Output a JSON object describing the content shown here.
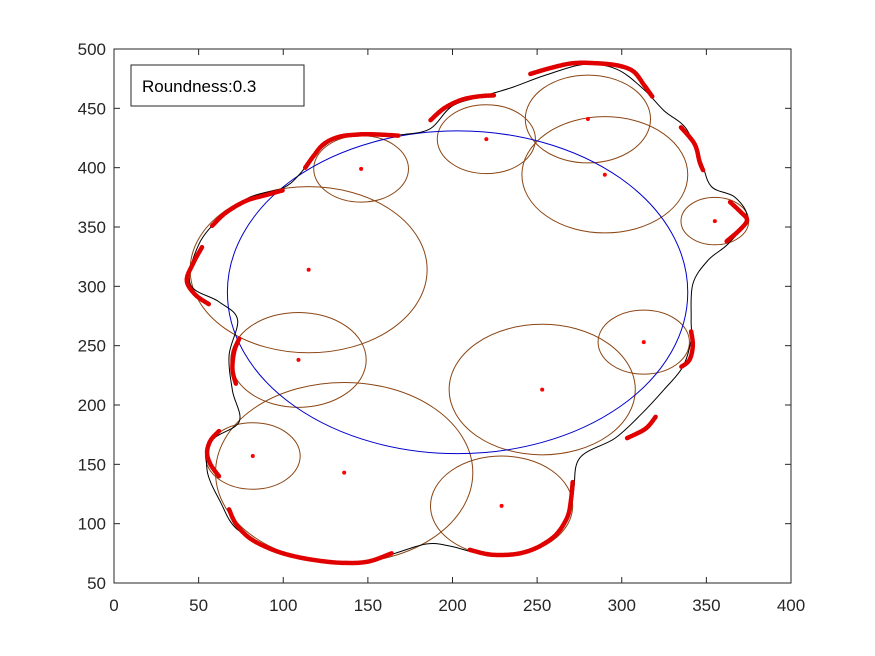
{
  "chart_data": {
    "type": "scatter",
    "title": "",
    "xlabel": "",
    "ylabel": "",
    "xlim": [
      0,
      400
    ],
    "ylim": [
      50,
      500
    ],
    "x_ticks": [
      "0",
      "50",
      "100",
      "150",
      "200",
      "250",
      "300",
      "350",
      "400"
    ],
    "y_ticks": [
      "50",
      "100",
      "150",
      "200",
      "250",
      "300",
      "350",
      "400",
      "450",
      "500"
    ],
    "grid": false,
    "legend": {
      "text": "Roundness:0.3",
      "placement": "top-left"
    },
    "colors": {
      "circles": "#8B4513",
      "centers": "#FF0000",
      "blob": "#000000",
      "highlight": "#E00000",
      "ellipse": "#0000CC",
      "axes": "#262626"
    },
    "circles": [
      {
        "cx": 146,
        "cy": 399,
        "r": 28
      },
      {
        "cx": 220,
        "cy": 424,
        "r": 29
      },
      {
        "cx": 280,
        "cy": 441,
        "r": 37
      },
      {
        "cx": 290,
        "cy": 394,
        "r": 49
      },
      {
        "cx": 355,
        "cy": 355,
        "r": 20
      },
      {
        "cx": 115,
        "cy": 314,
        "r": 70
      },
      {
        "cx": 313,
        "cy": 253,
        "r": 27
      },
      {
        "cx": 109,
        "cy": 238,
        "r": 40
      },
      {
        "cx": 253,
        "cy": 213,
        "r": 55
      },
      {
        "cx": 82,
        "cy": 157,
        "r": 28
      },
      {
        "cx": 136,
        "cy": 143,
        "r": 76
      },
      {
        "cx": 229,
        "cy": 115,
        "r": 42
      }
    ],
    "ellipse": {
      "cx": 203,
      "cy": 295,
      "rx": 136,
      "ry": 136
    },
    "blob_outline": [
      [
        120,
        413
      ],
      [
        133,
        425
      ],
      [
        154,
        427
      ],
      [
        171,
        428
      ],
      [
        187,
        433
      ],
      [
        200,
        452
      ],
      [
        220,
        461
      ],
      [
        236,
        468
      ],
      [
        255,
        478
      ],
      [
        278,
        487
      ],
      [
        297,
        483
      ],
      [
        313,
        466
      ],
      [
        325,
        448
      ],
      [
        338,
        433
      ],
      [
        347,
        405
      ],
      [
        353,
        384
      ],
      [
        367,
        375
      ],
      [
        374,
        357
      ],
      [
        363,
        336
      ],
      [
        351,
        322
      ],
      [
        342,
        302
      ],
      [
        341,
        272
      ],
      [
        341,
        255
      ],
      [
        336,
        232
      ],
      [
        325,
        213
      ],
      [
        312,
        193
      ],
      [
        296,
        172
      ],
      [
        275,
        155
      ],
      [
        271,
        124
      ],
      [
        262,
        91
      ],
      [
        245,
        77
      ],
      [
        220,
        74
      ],
      [
        199,
        81
      ],
      [
        185,
        83
      ],
      [
        166,
        75
      ],
      [
        148,
        67
      ],
      [
        120,
        68
      ],
      [
        96,
        78
      ],
      [
        73,
        95
      ],
      [
        63,
        118
      ],
      [
        55,
        145
      ],
      [
        58,
        170
      ],
      [
        74,
        186
      ],
      [
        70,
        212
      ],
      [
        68,
        242
      ],
      [
        73,
        272
      ],
      [
        62,
        287
      ],
      [
        45,
        302
      ],
      [
        50,
        335
      ],
      [
        63,
        358
      ],
      [
        80,
        375
      ],
      [
        100,
        383
      ],
      [
        110,
        395
      ]
    ],
    "highlight_segments": [
      [
        [
          113,
          400
        ],
        [
          118,
          410
        ],
        [
          124,
          420
        ],
        [
          133,
          426
        ],
        [
          145,
          428
        ],
        [
          155,
          428
        ],
        [
          168,
          427
        ]
      ],
      [
        [
          187,
          440
        ],
        [
          195,
          450
        ],
        [
          205,
          457
        ],
        [
          215,
          460
        ],
        [
          225,
          461
        ]
      ],
      [
        [
          246,
          479
        ],
        [
          258,
          484
        ],
        [
          271,
          488
        ],
        [
          285,
          488
        ],
        [
          298,
          486
        ],
        [
          307,
          481
        ],
        [
          313,
          470
        ],
        [
          318,
          460
        ]
      ],
      [
        [
          335,
          434
        ],
        [
          343,
          420
        ],
        [
          346,
          405
        ],
        [
          348,
          398
        ]
      ],
      [
        [
          364,
          371
        ],
        [
          370,
          363
        ],
        [
          374,
          356
        ],
        [
          370,
          348
        ],
        [
          362,
          338
        ]
      ],
      [
        [
          341,
          262
        ],
        [
          342,
          250
        ],
        [
          340,
          238
        ],
        [
          335,
          232
        ]
      ],
      [
        [
          320,
          190
        ],
        [
          314,
          180
        ],
        [
          303,
          172
        ]
      ],
      [
        [
          271,
          135
        ],
        [
          270,
          120
        ],
        [
          268,
          106
        ],
        [
          262,
          92
        ],
        [
          254,
          83
        ],
        [
          245,
          77
        ],
        [
          235,
          74
        ],
        [
          222,
          74
        ],
        [
          210,
          78
        ]
      ],
      [
        [
          164,
          75
        ],
        [
          150,
          68
        ],
        [
          135,
          67
        ],
        [
          120,
          69
        ],
        [
          105,
          73
        ],
        [
          92,
          79
        ],
        [
          80,
          88
        ],
        [
          72,
          100
        ],
        [
          68,
          112
        ]
      ],
      [
        [
          62,
          178
        ],
        [
          57,
          170
        ],
        [
          55,
          160
        ],
        [
          57,
          150
        ],
        [
          62,
          140
        ]
      ],
      [
        [
          72,
          218
        ],
        [
          70,
          230
        ],
        [
          71,
          245
        ],
        [
          74,
          256
        ]
      ],
      [
        [
          56,
          285
        ],
        [
          48,
          293
        ],
        [
          43,
          305
        ],
        [
          47,
          320
        ],
        [
          52,
          333
        ]
      ],
      [
        [
          58,
          351
        ],
        [
          66,
          362
        ],
        [
          78,
          372
        ],
        [
          90,
          377
        ],
        [
          100,
          381
        ]
      ]
    ]
  }
}
